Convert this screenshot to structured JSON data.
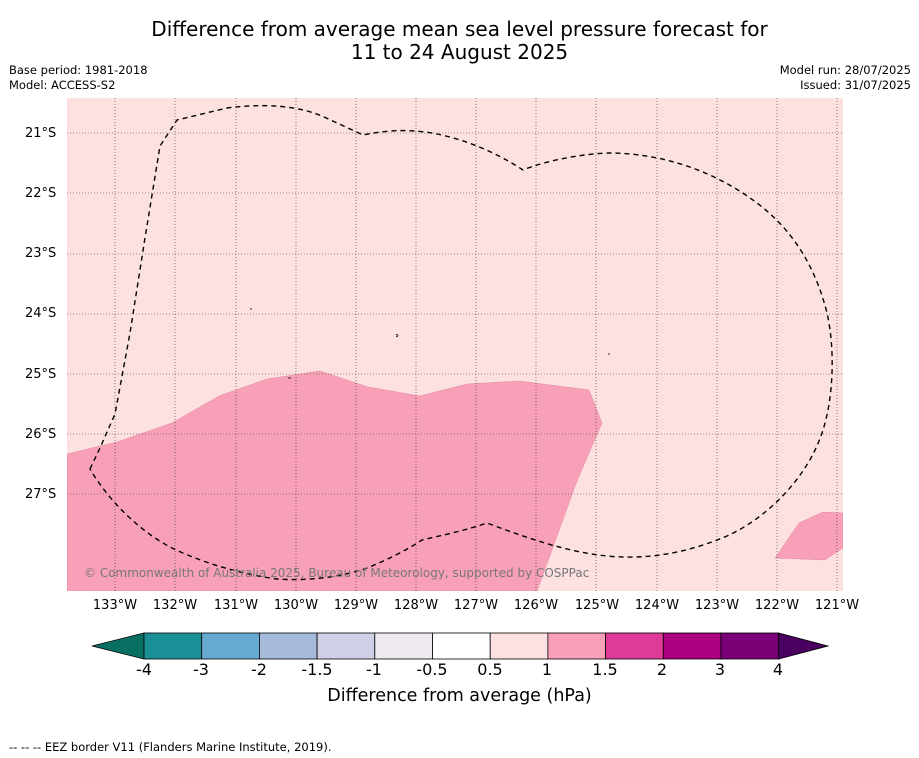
{
  "title": {
    "line1": "Difference from average mean sea level pressure forecast for",
    "line2": "11 to 24 August 2025"
  },
  "meta_left": {
    "base_period": "Base period: 1981-2018",
    "model": "Model: ACCESS-S2"
  },
  "meta_right": {
    "model_run": "Model run: 28/07/2025",
    "issued": "Issued: 31/07/2025"
  },
  "latitudes": [
    "21°S",
    "22°S",
    "23°S",
    "24°S",
    "25°S",
    "26°S",
    "27°S"
  ],
  "longitudes": [
    "133°W",
    "132°W",
    "131°W",
    "130°W",
    "129°W",
    "128°W",
    "127°W",
    "126°W",
    "125°W",
    "124°W",
    "123°W",
    "122°W",
    "121°W"
  ],
  "copyright": "© Commonwealth of Australia 2025, Bureau of Meteorology, supported by COSPPac",
  "colorbar": {
    "ticks": [
      "-4",
      "-3",
      "-2",
      "-1.5",
      "-1",
      "-0.5",
      "0.5",
      "1",
      "1.5",
      "2",
      "3",
      "4"
    ],
    "colors": [
      "#1a8f96",
      "#66a9d1",
      "#a6badb",
      "#cfd0e6",
      "#efe8f0",
      "#ffffff",
      "#fde0e0",
      "#f8a0b8",
      "#de3b98",
      "#ad0080",
      "#7a0077"
    ],
    "under_color": "#0a6f63",
    "over_color": "#4a0060",
    "label": "Difference from average (hPa)"
  },
  "map_fills": {
    "background_category": "0.5 to 1",
    "background_color": "#fde0e0",
    "patch_category": "1 to 1.5",
    "patch_color": "#f8a0b8"
  },
  "footnote": "-- -- -- EEZ border V11 (Flanders Marine Institute, 2019)."
}
